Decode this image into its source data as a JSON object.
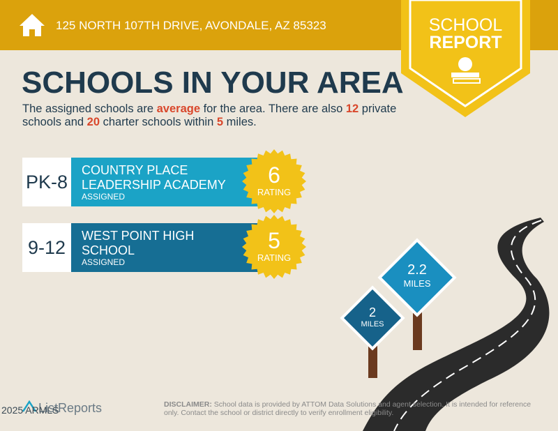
{
  "header": {
    "address": "125 NORTH 107TH DRIVE, AVONDALE, AZ 85323"
  },
  "badge": {
    "line1": "SCHOOL",
    "line2": "REPORT"
  },
  "title": "SCHOOLS IN YOUR AREA",
  "intro": {
    "parts": [
      "The assigned schools are ",
      "average",
      " for the area. There are also ",
      "12",
      " private schools and ",
      "20",
      " charter schools within ",
      "5",
      " miles."
    ]
  },
  "schools": [
    {
      "grade": "PK-8",
      "name": "COUNTRY PLACE LEADERSHIP ACADEMY",
      "status": "ASSIGNED",
      "rating": "6",
      "rating_label": "RATING"
    },
    {
      "grade": "9-12",
      "name": "WEST POINT HIGH SCHOOL",
      "status": "ASSIGNED",
      "rating": "5",
      "rating_label": "RATING"
    }
  ],
  "signs": [
    {
      "distance": "2.2",
      "unit": "MILES"
    },
    {
      "distance": "2",
      "unit": "MILES"
    }
  ],
  "footer": {
    "logo": "ListReports",
    "copyright": "2025 ARMLS",
    "disclaimer_label": "DISCLAIMER:",
    "disclaimer": " School data is provided by ATTOM Data Solutions and agent selection. It is intended for reference only. Contact the school or district directly to verify enrollment eligibility."
  }
}
